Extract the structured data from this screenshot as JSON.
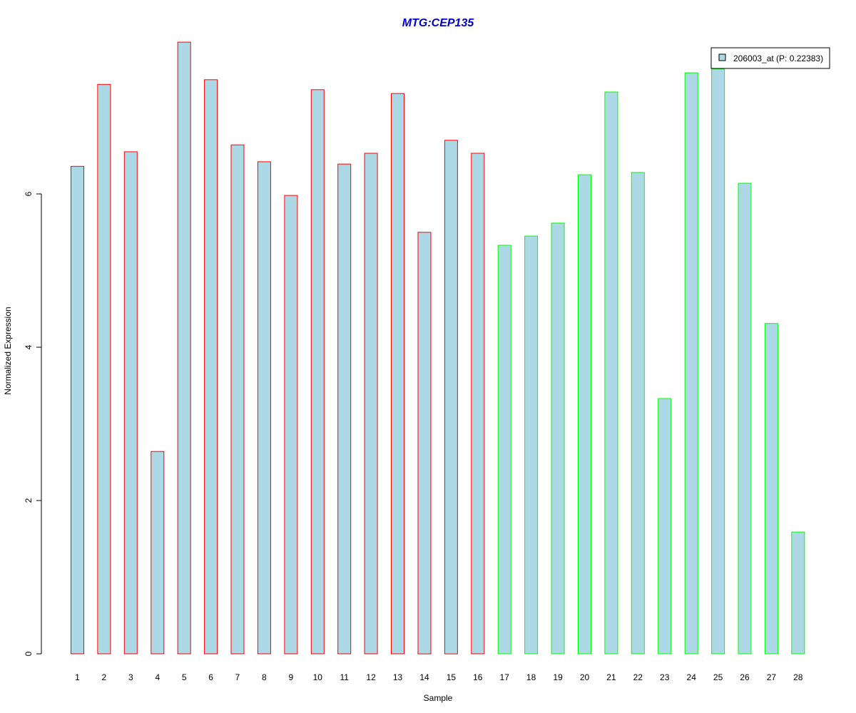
{
  "chart_data": {
    "type": "bar",
    "title": "MTG:CEP135",
    "xlabel": "Sample",
    "ylabel": "Normalized Expression",
    "categories": [
      "1",
      "2",
      "3",
      "4",
      "5",
      "6",
      "7",
      "8",
      "9",
      "10",
      "11",
      "12",
      "13",
      "14",
      "15",
      "16",
      "17",
      "18",
      "19",
      "20",
      "21",
      "22",
      "23",
      "24",
      "25",
      "26",
      "27",
      "28"
    ],
    "series": [
      {
        "name": "206003_at (P: 0.22383)",
        "values": [
          6.36,
          7.43,
          6.55,
          2.64,
          7.98,
          7.49,
          6.64,
          6.42,
          5.98,
          7.36,
          6.39,
          6.53,
          7.31,
          5.5,
          6.7,
          6.53,
          5.33,
          5.45,
          5.62,
          6.25,
          7.33,
          6.28,
          3.33,
          7.58,
          7.63,
          6.14,
          4.31,
          1.59
        ]
      }
    ],
    "bar_border_colors": [
      "#ff0000",
      "#ff0000",
      "#ff0000",
      "#ff0000",
      "#ff0000",
      "#ff0000",
      "#ff0000",
      "#ff0000",
      "#ff0000",
      "#ff0000",
      "#ff0000",
      "#ff0000",
      "#ff0000",
      "#ff0000",
      "#ff0000",
      "#ff0000",
      "#00ff00",
      "#00ff00",
      "#00ff00",
      "#00ff00",
      "#00ff00",
      "#00ff00",
      "#00ff00",
      "#00ff00",
      "#00ff00",
      "#00ff00",
      "#00ff00",
      "#00ff00"
    ],
    "bar_fill_color": "#add8e6",
    "title_color": "#0000cd",
    "y_ticks": [
      0,
      2,
      4,
      6
    ],
    "y_tick_labels": [
      "0",
      "2",
      "4",
      "6"
    ],
    "ylim": [
      0,
      7.98
    ],
    "legend": {
      "position": "top-right",
      "label": "206003_at (P: 0.22383)"
    },
    "grid": false
  }
}
